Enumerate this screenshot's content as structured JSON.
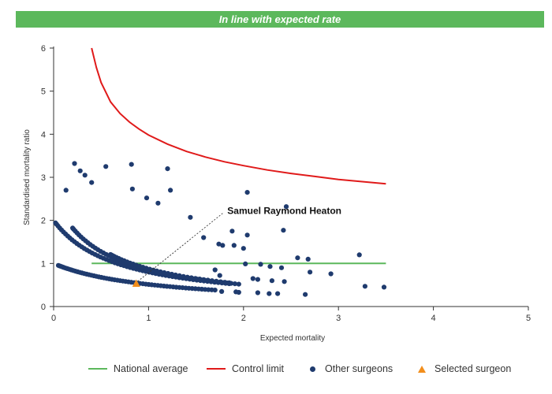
{
  "banner": {
    "text": "In line with expected rate",
    "color": "#5cb85c"
  },
  "chart_data": {
    "type": "scatter",
    "xlabel": "Expected mortality",
    "ylabel": "Standardised mortality ratio",
    "xlim": [
      0,
      5
    ],
    "ylim": [
      0,
      6
    ],
    "xticks": [
      "0",
      "1",
      "2",
      "3",
      "4",
      "5"
    ],
    "yticks": [
      "0",
      "1",
      "2",
      "3",
      "4",
      "5",
      "6"
    ],
    "grid": false,
    "legend_position": "bottom",
    "annotation": {
      "text": "Samuel Raymond Heaton",
      "x": 1.78,
      "y": 2.2
    },
    "series": [
      {
        "name": "National average",
        "type": "line",
        "color": "#5cb85c",
        "x": [
          0.4,
          3.5
        ],
        "y": [
          1,
          1
        ]
      },
      {
        "name": "Control limit",
        "type": "line",
        "color": "#e01a1a",
        "x": [
          0.4,
          0.45,
          0.5,
          0.6,
          0.7,
          0.8,
          0.9,
          1.0,
          1.2,
          1.4,
          1.6,
          1.8,
          2.0,
          2.25,
          2.5,
          2.75,
          3.0,
          3.25,
          3.5
        ],
        "y": [
          6.0,
          5.55,
          5.2,
          4.75,
          4.48,
          4.28,
          4.12,
          3.98,
          3.77,
          3.6,
          3.47,
          3.36,
          3.27,
          3.17,
          3.09,
          3.02,
          2.95,
          2.9,
          2.85
        ]
      },
      {
        "name": "Other surgeons",
        "type": "scatter",
        "color": "#1f3b6e",
        "curves": [
          {
            "k": 1,
            "x_from": 0.05,
            "x_to": 1.7,
            "n": 60
          },
          {
            "k": 2,
            "x_from": 0.02,
            "x_to": 1.85,
            "n": 60
          },
          {
            "k": 3,
            "x_from": 0.2,
            "x_to": 1.95,
            "n": 55
          },
          {
            "k": 4,
            "x_from": 0.6,
            "x_to": 1.85,
            "n": 35
          }
        ],
        "points": [
          [
            0.22,
            3.32
          ],
          [
            0.28,
            3.15
          ],
          [
            0.33,
            3.05
          ],
          [
            0.4,
            2.88
          ],
          [
            0.55,
            3.25
          ],
          [
            0.82,
            3.3
          ],
          [
            1.2,
            3.2
          ],
          [
            0.13,
            2.7
          ],
          [
            0.83,
            2.73
          ],
          [
            1.23,
            2.7
          ],
          [
            2.04,
            2.65
          ],
          [
            2.45,
            2.32
          ],
          [
            0.98,
            2.52
          ],
          [
            1.1,
            2.4
          ],
          [
            1.44,
            2.07
          ],
          [
            1.58,
            1.6
          ],
          [
            1.88,
            1.75
          ],
          [
            2.04,
            1.66
          ],
          [
            2.42,
            1.77
          ],
          [
            1.74,
            1.45
          ],
          [
            1.78,
            1.42
          ],
          [
            1.9,
            1.42
          ],
          [
            2.0,
            1.35
          ],
          [
            2.18,
            0.98
          ],
          [
            2.28,
            0.93
          ],
          [
            2.4,
            0.9
          ],
          [
            2.57,
            1.13
          ],
          [
            2.68,
            1.1
          ],
          [
            2.7,
            0.8
          ],
          [
            2.92,
            0.76
          ],
          [
            3.22,
            1.2
          ],
          [
            3.28,
            0.47
          ],
          [
            3.48,
            0.45
          ],
          [
            2.1,
            0.65
          ],
          [
            2.15,
            0.63
          ],
          [
            2.3,
            0.6
          ],
          [
            2.43,
            0.58
          ],
          [
            2.15,
            0.32
          ],
          [
            2.27,
            0.3
          ],
          [
            2.36,
            0.3
          ],
          [
            2.65,
            0.28
          ],
          [
            1.77,
            0.35
          ],
          [
            1.92,
            0.34
          ],
          [
            1.95,
            0.33
          ],
          [
            2.02,
            0.99
          ],
          [
            1.7,
            0.85
          ],
          [
            1.75,
            0.72
          ]
        ]
      },
      {
        "name": "Selected surgeon",
        "type": "scatter",
        "color": "#f28e1c",
        "points": [
          [
            0.87,
            0.53
          ]
        ]
      }
    ]
  }
}
